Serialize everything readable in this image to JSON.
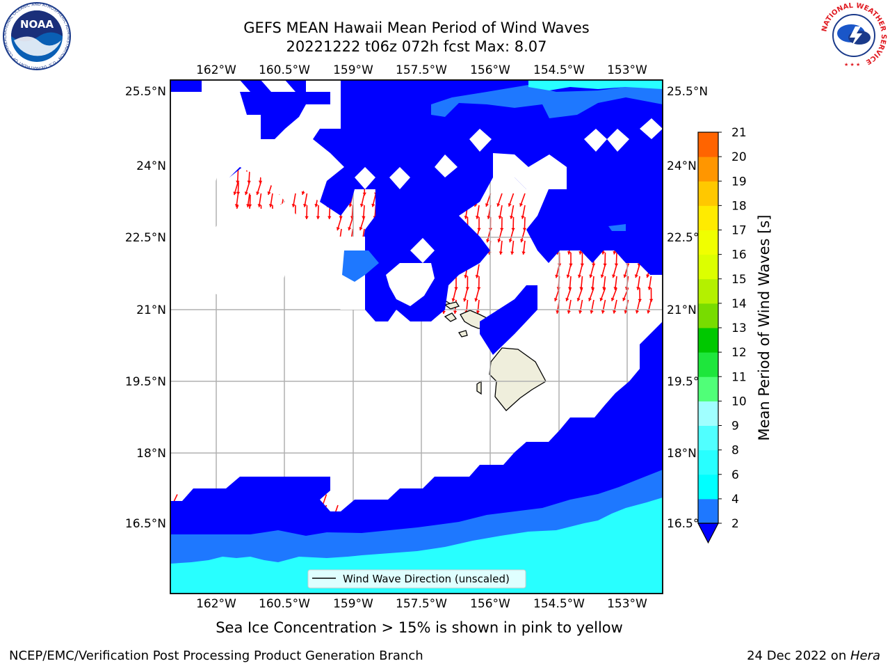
{
  "header": {
    "title_line1": "GEFS MEAN Hawaii Mean Period of Wind Waves",
    "title_line2": "20221222 t06z 072h fcst   Max: 8.07"
  },
  "map": {
    "lon_labels": [
      "162°W",
      "160.5°W",
      "159°W",
      "157.5°W",
      "156°W",
      "154.5°W",
      "153°W"
    ],
    "lat_labels": [
      "25.5°N",
      "24°N",
      "22.5°N",
      "21°N",
      "19.5°N",
      "18°N",
      "16.5°N"
    ],
    "legend_label": "Wind Wave Direction (unscaled)",
    "colors": {
      "dark_blue": "#0000ff",
      "mid_blue": "#1e78ff",
      "cyan": "#28ffff",
      "arrow": "#ff0000",
      "land": "#efeedc",
      "grid": "#b0b0b0"
    }
  },
  "colorbar": {
    "label": "Mean Period of Wind Waves [s]",
    "ticks": [
      "2",
      "4",
      "6",
      "8",
      "9",
      "10",
      "11",
      "12",
      "13",
      "14",
      "15",
      "16",
      "17",
      "18",
      "19",
      "20",
      "21"
    ],
    "colors": [
      "#1e78ff",
      "#00ffff",
      "#28ffff",
      "#50ffff",
      "#a0ffff",
      "#50ff78",
      "#1ee63c",
      "#00c800",
      "#78dc00",
      "#b4f000",
      "#dcff00",
      "#f0ff00",
      "#ffeb00",
      "#ffc800",
      "#ff9600",
      "#ff6400",
      "#ff3200",
      "#ff0000"
    ],
    "underflow_color": "#0000ff"
  },
  "ice_note": "Sea Ice Concentration > 15% is shown in pink to yellow",
  "footer": {
    "left": "NCEP/EMC/Verification Post Processing Product Generation Branch",
    "date": "24 Dec 2022 on ",
    "host": "Hera"
  },
  "logos": {
    "noaa_text": "NOAA",
    "noaa_ring": "NATIONAL OCEANIC AND ATMOSPHERIC ADMINISTRATION · U.S. DEPARTMENT OF COMMERCE",
    "nws_ring": "NATIONAL WEATHER SERVICE"
  }
}
